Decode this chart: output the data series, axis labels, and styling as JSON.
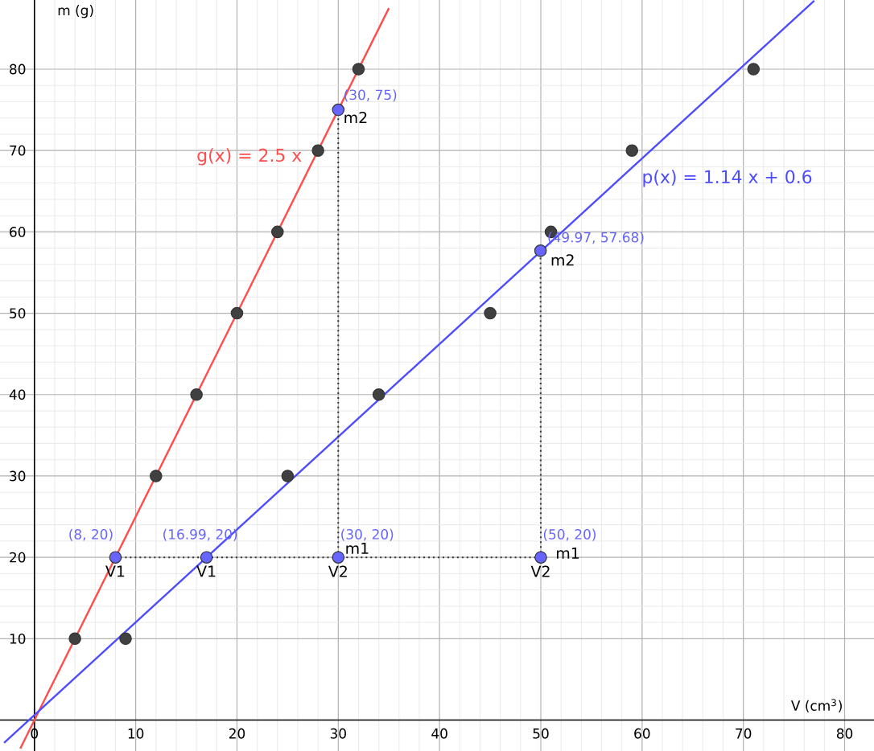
{
  "chart_data": {
    "type": "scatter",
    "xlabel": "V (cm$^{3}$)",
    "ylabel": "m (g)",
    "xlim": [
      -3.4,
      82.9
    ],
    "ylim": [
      -3.8,
      88.5
    ],
    "xticks": [
      0,
      10,
      20,
      30,
      40,
      50,
      60,
      70,
      80
    ],
    "yticks": [
      10,
      20,
      30,
      40,
      50,
      60,
      70,
      80
    ],
    "grid": true,
    "series": [
      {
        "type": "line",
        "name": "g(x) = 2.5 x",
        "color": "#ff4d4d",
        "x": [
          -1.4,
          35
        ],
        "values": [
          -3.5,
          87.5
        ]
      },
      {
        "type": "line",
        "name": "p(x) = 1.14 x + 0.6",
        "color": "#4d4dff",
        "x": [
          -3,
          77
        ],
        "values": [
          -2.8,
          88.4
        ]
      },
      {
        "type": "line",
        "line_style": "dotted",
        "color": "#333333",
        "x": [
          8,
          50
        ],
        "values": [
          20,
          20
        ]
      },
      {
        "type": "line",
        "line_style": "dotted",
        "color": "#333333",
        "x": [
          30,
          30
        ],
        "values": [
          20,
          75
        ]
      },
      {
        "type": "line",
        "line_style": "dotted",
        "color": "#333333",
        "x": [
          50,
          49.97
        ],
        "values": [
          20,
          57.68
        ]
      },
      {
        "marker": "circle",
        "color": "#404040",
        "x": [
          4,
          12,
          16,
          20,
          24,
          28,
          32
        ],
        "values": [
          10,
          30,
          40,
          50,
          60,
          70,
          80
        ]
      },
      {
        "marker": "circle",
        "color": "#404040",
        "x": [
          9,
          25,
          34,
          45,
          51,
          59,
          71
        ],
        "values": [
          10,
          30,
          40,
          50,
          60,
          70,
          80
        ]
      },
      {
        "marker": "circle",
        "color": "#6666ff",
        "x": [
          8,
          16.99,
          30,
          50,
          30,
          49.97
        ],
        "values": [
          20,
          20,
          20,
          20,
          75,
          57.68
        ],
        "value_labels": [
          "(8, 20)",
          "(16.99, 20)",
          "(30, 20)",
          "(50, 20)",
          "(30, 75)",
          "(49.97, 57.68)"
        ]
      }
    ],
    "annotations": [
      {
        "text": "V1",
        "x": 8,
        "y": 20
      },
      {
        "text": "V1",
        "x": 16.99,
        "y": 20
      },
      {
        "text": "V2",
        "x": 30,
        "y": 20
      },
      {
        "text": "V2",
        "x": 50,
        "y": 20
      },
      {
        "text": "m1",
        "x": 30,
        "y": 20
      },
      {
        "text": "m1",
        "x": 50,
        "y": 20
      },
      {
        "text": "m2",
        "x": 30,
        "y": 75
      },
      {
        "text": "m2",
        "x": 49.97,
        "y": 57.68
      }
    ]
  }
}
